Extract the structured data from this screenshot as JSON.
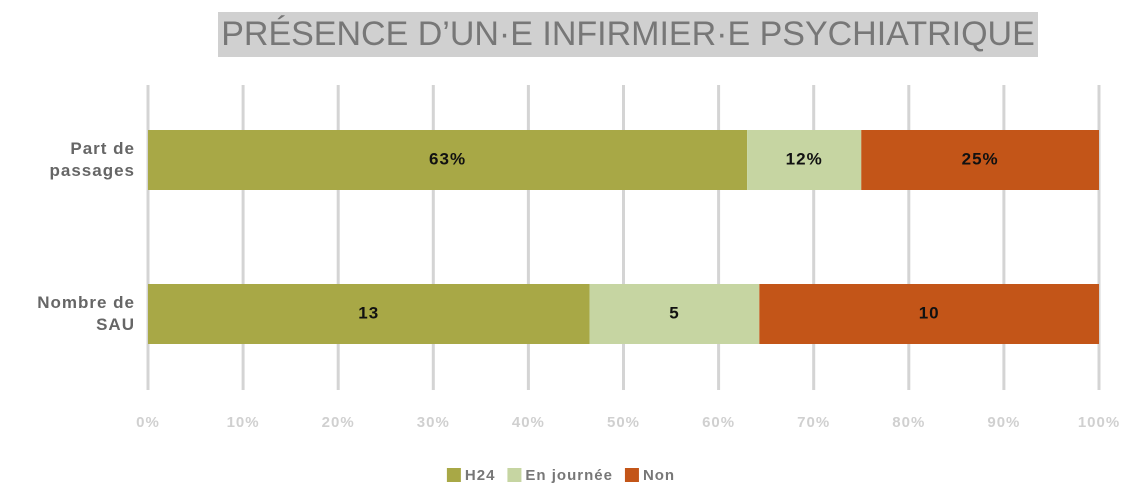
{
  "chart_data": {
    "type": "bar",
    "orientation": "horizontal",
    "stacked": "percent",
    "title": "PRÉSENCE D’UN·E INFIRMIER·E PSYCHIATRIQUE",
    "categories": [
      "Part de passages",
      "Nombre de SAU"
    ],
    "series": [
      {
        "name": "H24",
        "color": "#a8a846",
        "values": [
          63,
          13
        ],
        "value_labels": [
          "63%",
          "13"
        ]
      },
      {
        "name": "En journée",
        "color": "#c6d5a2",
        "values": [
          12,
          5
        ],
        "value_labels": [
          "12%",
          "5"
        ]
      },
      {
        "name": "Non",
        "color": "#c35518",
        "values": [
          25,
          10
        ],
        "value_labels": [
          "25%",
          "10"
        ]
      }
    ],
    "xlim": [
      0,
      100
    ],
    "xticks": [
      {
        "value": 0,
        "label": "0%"
      },
      {
        "value": 10,
        "label": "10%"
      },
      {
        "value": 20,
        "label": "20%"
      },
      {
        "value": 30,
        "label": "30%"
      },
      {
        "value": 40,
        "label": "40%"
      },
      {
        "value": 50,
        "label": "50%"
      },
      {
        "value": 60,
        "label": "60%"
      },
      {
        "value": 70,
        "label": "70%"
      },
      {
        "value": 80,
        "label": "80%"
      },
      {
        "value": 90,
        "label": "90%"
      },
      {
        "value": 100,
        "label": "100%"
      }
    ],
    "grid": true,
    "legend": "bottom"
  }
}
